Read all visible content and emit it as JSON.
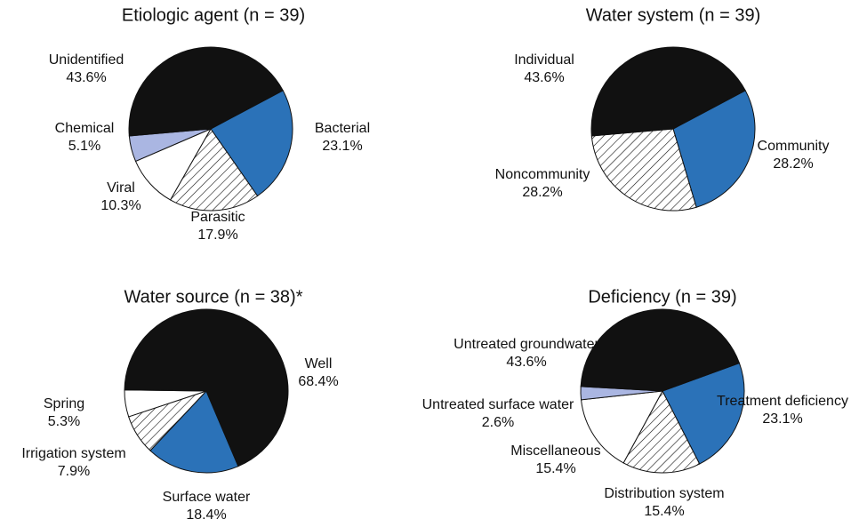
{
  "chart_data": [
    {
      "type": "pie",
      "title": "Etiologic agent (n = 39)",
      "categories": [
        "Bacterial",
        "Parasitic",
        "Viral",
        "Chemical",
        "Unidentified"
      ],
      "values": [
        23.1,
        17.9,
        10.3,
        5.1,
        43.6
      ],
      "value_labels": [
        "23.1%",
        "17.9%",
        "10.3%",
        "5.1%",
        "43.6%"
      ],
      "colors": [
        "#2b72b8",
        "#ffffff",
        "#ffffff",
        "#aab6e2",
        "#111111"
      ],
      "hatch": [
        false,
        true,
        false,
        false,
        false
      ]
    },
    {
      "type": "pie",
      "title": "Water system (n = 39)",
      "categories": [
        "Community",
        "Noncommunity",
        "Individual"
      ],
      "values": [
        28.2,
        28.2,
        43.6
      ],
      "value_labels": [
        "28.2%",
        "28.2%",
        "43.6%"
      ],
      "colors": [
        "#2b72b8",
        "#ffffff",
        "#111111"
      ],
      "hatch": [
        false,
        true,
        false
      ]
    },
    {
      "type": "pie",
      "title": "Water source (n = 38)*",
      "categories": [
        "Surface water",
        "Irrigation system",
        "Spring",
        "Well"
      ],
      "values": [
        18.4,
        7.9,
        5.3,
        68.4
      ],
      "value_labels": [
        "18.4%",
        "7.9%",
        "5.3%",
        "68.4%"
      ],
      "colors": [
        "#2b72b8",
        "#ffffff",
        "#ffffff",
        "#111111"
      ],
      "hatch": [
        false,
        true,
        false,
        false
      ]
    },
    {
      "type": "pie",
      "title": "Deficiency (n = 39)",
      "categories": [
        "Treatment deficiency",
        "Distribution system",
        "Miscellaneous",
        "Untreated surface water",
        "Untreated groundwater"
      ],
      "values": [
        23.1,
        15.4,
        15.4,
        2.6,
        43.6
      ],
      "value_labels": [
        "23.1%",
        "15.4%",
        "15.4%",
        "2.6%",
        "43.6%"
      ],
      "colors": [
        "#2b72b8",
        "#ffffff",
        "#ffffff",
        "#aab6e2",
        "#111111"
      ],
      "hatch": [
        false,
        true,
        false,
        false,
        false
      ]
    }
  ]
}
